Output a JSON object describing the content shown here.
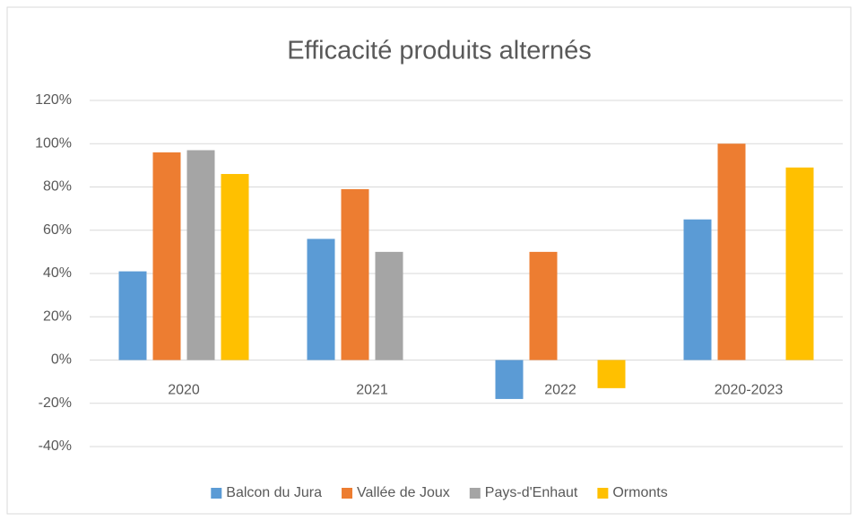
{
  "chart_data": {
    "type": "bar",
    "title": "Efficacité produits alternés",
    "categories": [
      "2020",
      "2021",
      "2022",
      "2020-2023"
    ],
    "series": [
      {
        "name": "Balcon du Jura",
        "color": "#5b9bd5",
        "values": [
          41,
          56,
          -18,
          65
        ]
      },
      {
        "name": "Vallée de Joux",
        "color": "#ed7d31",
        "values": [
          96,
          79,
          50,
          100
        ]
      },
      {
        "name": "Pays-d'Enhaut",
        "color": "#a5a5a5",
        "values": [
          97,
          50,
          null,
          null
        ]
      },
      {
        "name": "Ormonts",
        "color": "#ffc000",
        "values": [
          86,
          null,
          -13,
          89
        ]
      }
    ],
    "ylim": [
      -40,
      120
    ],
    "yticks": [
      {
        "value": -40,
        "label": "-40%"
      },
      {
        "value": -20,
        "label": "-20%"
      },
      {
        "value": 0,
        "label": "0%"
      },
      {
        "value": 20,
        "label": "20%"
      },
      {
        "value": 40,
        "label": "40%"
      },
      {
        "value": 60,
        "label": "60%"
      },
      {
        "value": 80,
        "label": "80%"
      },
      {
        "value": 100,
        "label": "100%"
      },
      {
        "value": 120,
        "label": "120%"
      }
    ],
    "grid": true,
    "legend": "bottom"
  }
}
